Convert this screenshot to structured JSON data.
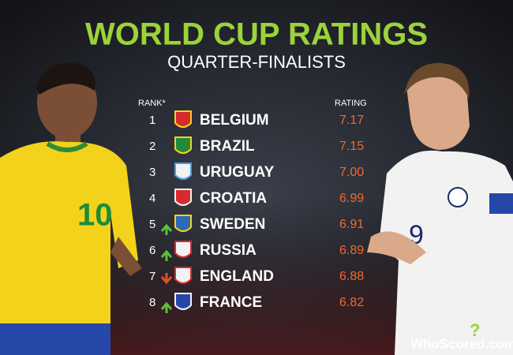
{
  "header": {
    "title": "WORLD CUP RATINGS",
    "subtitle": "QUARTER-FINALISTS"
  },
  "table": {
    "columns": [
      "RANK*",
      "RATING"
    ],
    "rows": [
      [
        "1",
        "BELGIUM",
        "7.17"
      ],
      [
        "2",
        "BRAZIL",
        "7.15"
      ],
      [
        "3",
        "URUGUAY",
        "7.00"
      ],
      [
        "4",
        "CROATIA",
        "6.99"
      ],
      [
        "5",
        "SWEDEN",
        "6.91"
      ],
      [
        "6",
        "RUSSIA",
        "6.89"
      ],
      [
        "7",
        "ENGLAND",
        "6.88"
      ],
      [
        "8",
        "FRANCE",
        "6.82"
      ]
    ]
  },
  "footer": {
    "logo": "WhoScored.com"
  }
}
